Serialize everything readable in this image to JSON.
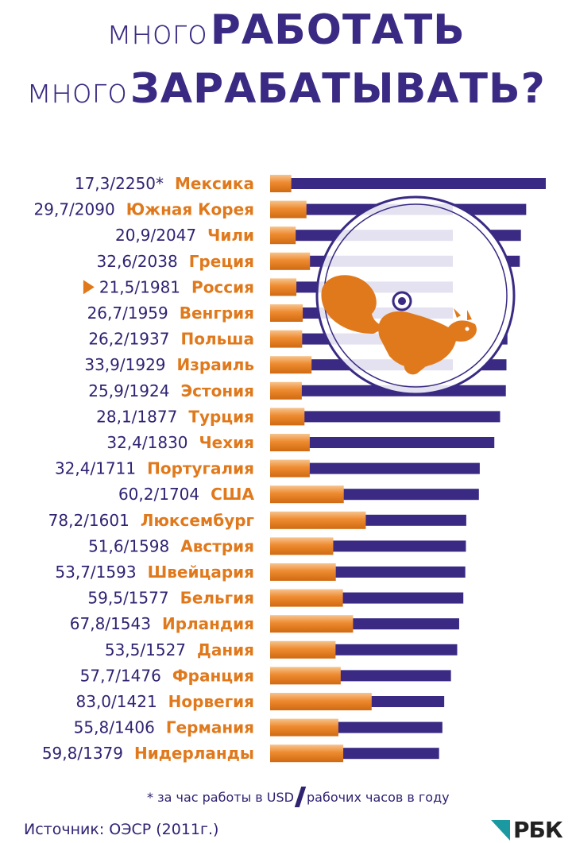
{
  "title": {
    "line1_light": "много",
    "line1_bold": "РАБОТАТЬ",
    "line2_light": "много",
    "line2_bold": "ЗАРАБАТЫВАТЬ?"
  },
  "chart_data": {
    "type": "bar",
    "orientation": "horizontal",
    "highlight_marker": "triangle-right",
    "categories": [
      "Мексика",
      "Южная Корея",
      "Чили",
      "Греция",
      "Россия",
      "Венгрия",
      "Польша",
      "Израиль",
      "Эстония",
      "Турция",
      "Чехия",
      "Португалия",
      "США",
      "Люксембург",
      "Австрия",
      "Швейцария",
      "Бельгия",
      "Ирландия",
      "Дания",
      "Франция",
      "Норвегия",
      "Германия",
      "Нидерланды"
    ],
    "value_labels": [
      "17,3/2250*",
      "29,7/2090",
      "20,9/2047",
      "32,6/2038",
      "21,5/1981",
      "26,7/1959",
      "26,2/1937",
      "33,9/1929",
      "25,9/1924",
      "28,1/1877",
      "32,4/1830",
      "32,4/1711",
      "60,2/1704",
      "78,2/1601",
      "51,6/1598",
      "53,7/1593",
      "59,5/1577",
      "67,8/1543",
      "53,5/1527",
      "57,7/1476",
      "83,0/1421",
      "55,8/1406",
      "59,8/1379"
    ],
    "highlighted": [
      "Россия"
    ],
    "series": [
      {
        "values": [
          2250,
          2090,
          2047,
          2038,
          1981,
          1959,
          1937,
          1929,
          1924,
          1877,
          1830,
          1711,
          1704,
          1601,
          1598,
          1593,
          1577,
          1543,
          1527,
          1476,
          1421,
          1406,
          1379
        ],
        "color": "#3a2a83"
      },
      {
        "values": [
          17.3,
          29.7,
          20.9,
          32.6,
          21.5,
          26.7,
          26.2,
          33.9,
          25.9,
          28.1,
          32.4,
          32.4,
          60.2,
          78.2,
          51.6,
          53.7,
          59.5,
          67.8,
          53.5,
          57.7,
          83.0,
          55.8,
          59.8
        ],
        "color": "#e0791c"
      }
    ]
  },
  "footnote": {
    "part1": "* за час работы в USD",
    "part2": "рабочих часов в году"
  },
  "source": "Источник: ОЭСР (2011г.)",
  "logo": "РБК",
  "colors": {
    "purple": "#3a2a83",
    "orange": "#e0791c",
    "teal": "#1a9aa0"
  },
  "illustration": "squirrel-in-wheel"
}
